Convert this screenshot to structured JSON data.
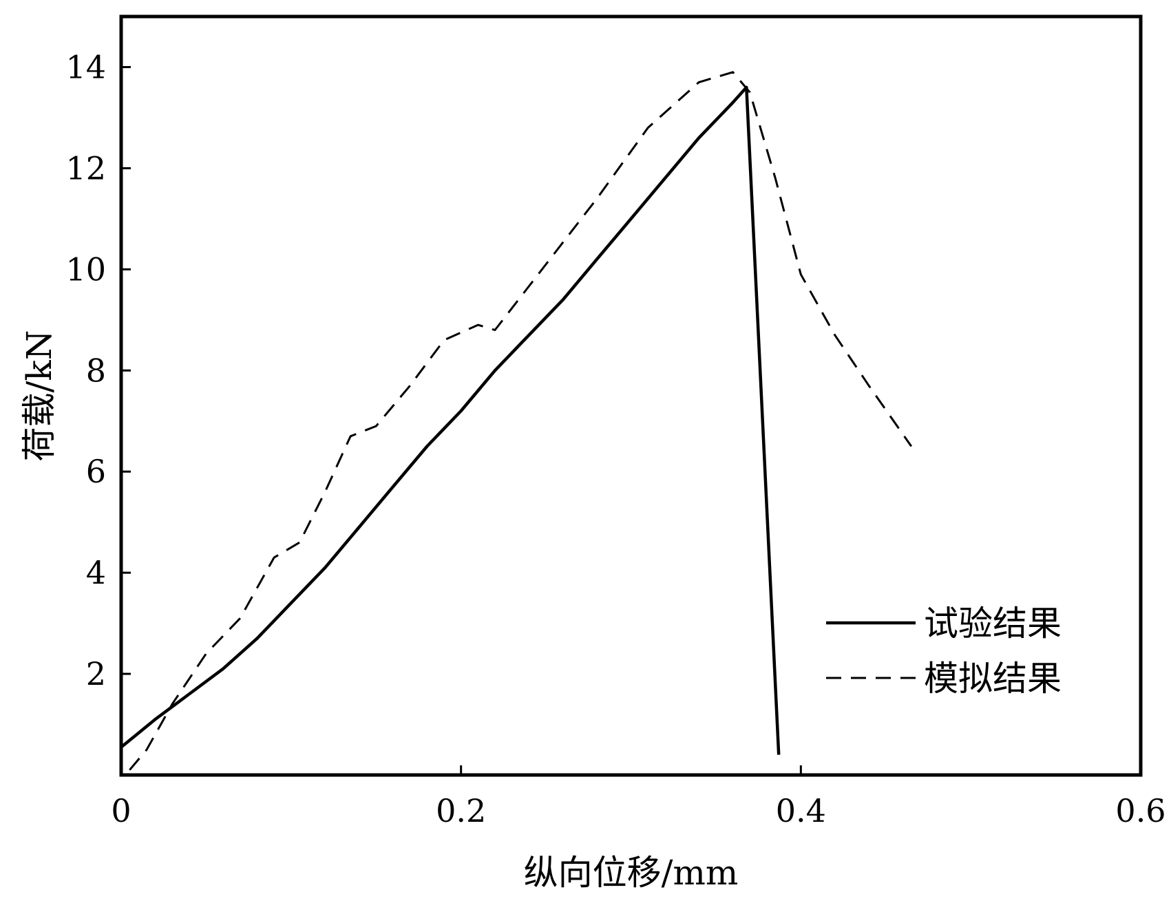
{
  "chart_data": {
    "type": "line",
    "title": "",
    "xlabel": "纵向位移/mm",
    "ylabel": "荷载/kN",
    "xlim": [
      0,
      0.6
    ],
    "ylim": [
      0,
      15
    ],
    "x_ticks": [
      {
        "value": 0,
        "label": "0"
      },
      {
        "value": 0.2,
        "label": "0.2"
      },
      {
        "value": 0.4,
        "label": "0.4"
      },
      {
        "value": 0.6,
        "label": "0.6"
      }
    ],
    "y_ticks": [
      {
        "value": 2,
        "label": "2"
      },
      {
        "value": 4,
        "label": "4"
      },
      {
        "value": 6,
        "label": "6"
      },
      {
        "value": 8,
        "label": "8"
      },
      {
        "value": 10,
        "label": "10"
      },
      {
        "value": 12,
        "label": "12"
      },
      {
        "value": 14,
        "label": "14"
      }
    ],
    "grid": false,
    "legend_position": "bottom-right",
    "series": [
      {
        "name": "试验结果",
        "style": "solid",
        "color": "#000000",
        "points": [
          [
            0.0,
            0.55
          ],
          [
            0.02,
            1.1
          ],
          [
            0.04,
            1.6
          ],
          [
            0.06,
            2.1
          ],
          [
            0.08,
            2.7
          ],
          [
            0.1,
            3.4
          ],
          [
            0.12,
            4.1
          ],
          [
            0.14,
            4.9
          ],
          [
            0.16,
            5.7
          ],
          [
            0.18,
            6.5
          ],
          [
            0.2,
            7.2
          ],
          [
            0.22,
            8.0
          ],
          [
            0.24,
            8.7
          ],
          [
            0.26,
            9.4
          ],
          [
            0.28,
            10.2
          ],
          [
            0.3,
            11.0
          ],
          [
            0.32,
            11.8
          ],
          [
            0.34,
            12.6
          ],
          [
            0.36,
            13.3
          ],
          [
            0.368,
            13.6
          ],
          [
            0.387,
            0.4
          ]
        ]
      },
      {
        "name": "模拟结果",
        "style": "dashed",
        "color": "#000000",
        "points": [
          [
            0.005,
            0.1
          ],
          [
            0.015,
            0.5
          ],
          [
            0.03,
            1.4
          ],
          [
            0.05,
            2.4
          ],
          [
            0.07,
            3.1
          ],
          [
            0.09,
            4.3
          ],
          [
            0.105,
            4.6
          ],
          [
            0.12,
            5.6
          ],
          [
            0.135,
            6.7
          ],
          [
            0.15,
            6.9
          ],
          [
            0.17,
            7.7
          ],
          [
            0.19,
            8.6
          ],
          [
            0.21,
            8.9
          ],
          [
            0.22,
            8.8
          ],
          [
            0.25,
            10.1
          ],
          [
            0.28,
            11.4
          ],
          [
            0.31,
            12.8
          ],
          [
            0.34,
            13.7
          ],
          [
            0.36,
            13.9
          ],
          [
            0.37,
            13.5
          ],
          [
            0.385,
            11.8
          ],
          [
            0.4,
            9.9
          ],
          [
            0.42,
            8.7
          ],
          [
            0.44,
            7.7
          ],
          [
            0.465,
            6.5
          ]
        ]
      }
    ]
  }
}
